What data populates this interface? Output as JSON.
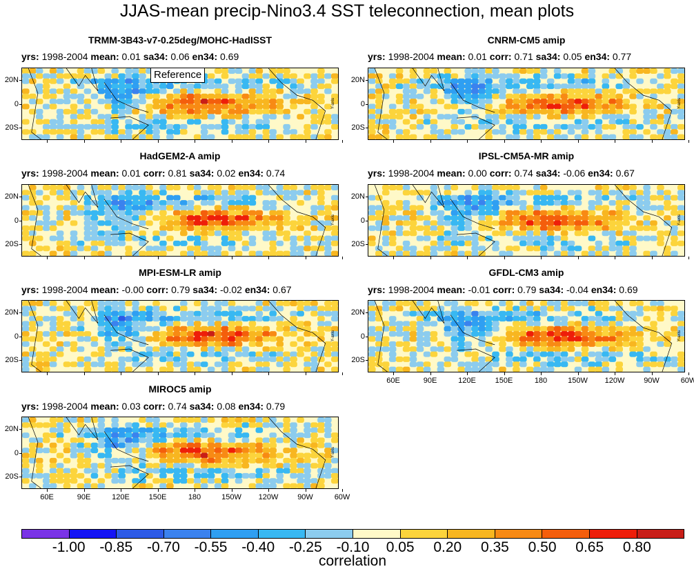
{
  "title": "JJAS-mean precip-Nino3.4 SST teleconnection, mean plots",
  "chart_data": {
    "type": "heatmap",
    "title": "JJAS-mean precip-Nino3.4 SST teleconnection, mean plots",
    "panels": [
      {
        "name": "TRMM-3B43-v7-0.25deg/MOHC-HadISST",
        "yrs": "1998-2004",
        "mean": "0.01",
        "corr": null,
        "sa34": "0.06",
        "en34": "0.69",
        "reference": "Reference"
      },
      {
        "name": "CNRM-CM5 amip",
        "yrs": "1998-2004",
        "mean": "0.01",
        "corr": "0.71",
        "sa34": "0.05",
        "en34": "0.77"
      },
      {
        "name": "HadGEM2-A amip",
        "yrs": "1998-2004",
        "mean": "0.01",
        "corr": "0.81",
        "sa34": "0.02",
        "en34": "0.74"
      },
      {
        "name": "IPSL-CM5A-MR amip",
        "yrs": "1998-2004",
        "mean": "0.00",
        "corr": "0.74",
        "sa34": "-0.06",
        "en34": "0.67"
      },
      {
        "name": "MPI-ESM-LR amip",
        "yrs": "1998-2004",
        "mean": "-0.00",
        "corr": "0.79",
        "sa34": "-0.02",
        "en34": "0.67"
      },
      {
        "name": "GFDL-CM3 amip",
        "yrs": "1998-2004",
        "mean": "-0.01",
        "corr": "0.79",
        "sa34": "-0.04",
        "en34": "0.69"
      },
      {
        "name": "MIROC5 amip",
        "yrs": "1998-2004",
        "mean": "0.03",
        "corr": "0.74",
        "sa34": "0.08",
        "en34": "0.79"
      }
    ],
    "stat_labels": {
      "yrs": "yrs:",
      "mean": "mean:",
      "corr": "corr:",
      "sa34": "sa34:",
      "en34": "en34:"
    },
    "lat_ticks": [
      "20N",
      "0",
      "20S"
    ],
    "lon_ticks": [
      "60E",
      "90E",
      "120E",
      "150E",
      "180",
      "150W",
      "120W",
      "90W",
      "60W"
    ],
    "ylabel": "Y-axis",
    "colorbar": {
      "title": "correlation",
      "labels": [
        "-1.00",
        "-0.85",
        "-0.70",
        "-0.55",
        "-0.40",
        "-0.25",
        "-0.10",
        "0.05",
        "0.20",
        "0.35",
        "0.50",
        "0.65",
        "0.80"
      ],
      "colors": [
        "#7a33e6",
        "#1414f5",
        "#2d5ae6",
        "#3b82ee",
        "#2f9ff2",
        "#38b8f2",
        "#8cccee",
        "#fff9c8",
        "#fcd43c",
        "#f8b620",
        "#f88a14",
        "#f45e0c",
        "#ee1e0a",
        "#c81e18"
      ]
    }
  }
}
